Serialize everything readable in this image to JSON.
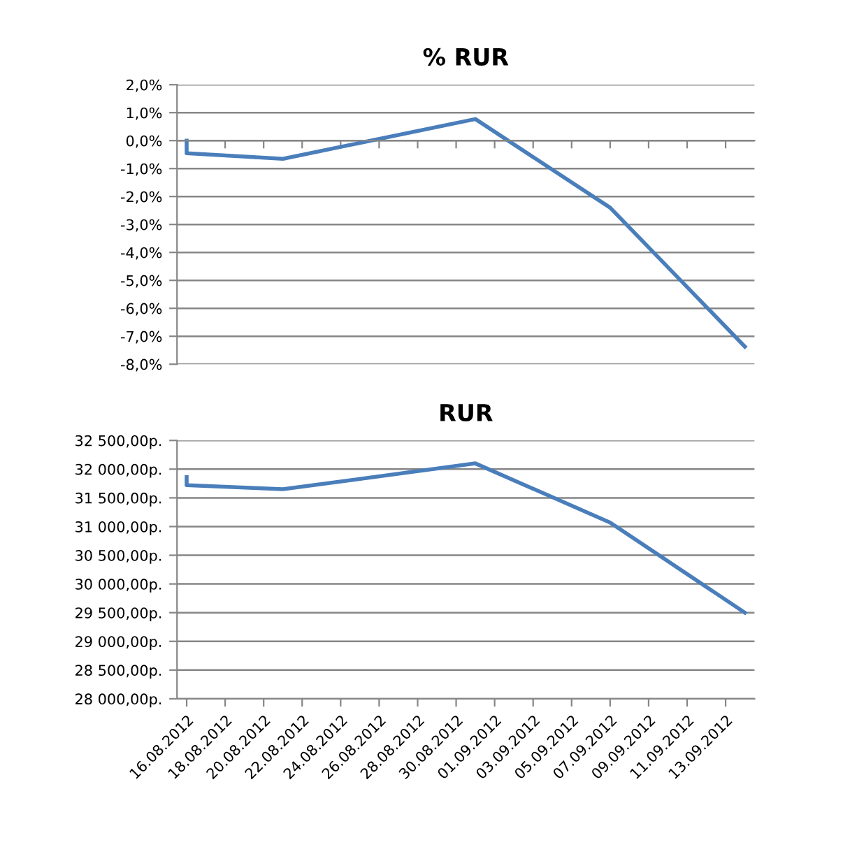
{
  "chart_data": [
    {
      "type": "line",
      "title": "% RUR",
      "tick_labels": "y",
      "grid": "y",
      "marker": "none",
      "line_style": "solid",
      "series": [
        {
          "color": "#4a7ebb",
          "x": [
            "2012-08-16",
            "2012-08-16",
            "2012-08-21",
            "2012-08-31",
            "2012-09-07",
            "2012-09-14"
          ],
          "values": [
            0.0,
            -0.45,
            -0.65,
            0.77,
            -2.4,
            -7.37
          ]
        }
      ],
      "xlim": [
        "2012-08-15T12:00",
        "2012-09-14T12:00"
      ],
      "xticks": [
        {
          "value": "2012-08-16",
          "label": null
        },
        {
          "value": "2012-08-18",
          "label": null
        },
        {
          "value": "2012-08-20",
          "label": null
        },
        {
          "value": "2012-08-22",
          "label": null
        },
        {
          "value": "2012-08-24",
          "label": null
        },
        {
          "value": "2012-08-26",
          "label": null
        },
        {
          "value": "2012-08-28",
          "label": null
        },
        {
          "value": "2012-08-30",
          "label": null
        },
        {
          "value": "2012-09-01",
          "label": null
        },
        {
          "value": "2012-09-03",
          "label": null
        },
        {
          "value": "2012-09-05",
          "label": null
        },
        {
          "value": "2012-09-07",
          "label": null
        },
        {
          "value": "2012-09-09",
          "label": null
        },
        {
          "value": "2012-09-11",
          "label": null
        },
        {
          "value": "2012-09-13",
          "label": null
        }
      ],
      "ylim": [
        -8,
        2
      ],
      "yticks": [
        {
          "value": -8,
          "label": "-8,0%"
        },
        {
          "value": -7,
          "label": "-7,0%"
        },
        {
          "value": -6,
          "label": "-6,0%"
        },
        {
          "value": -5,
          "label": "-5,0%"
        },
        {
          "value": -4,
          "label": "-4,0%"
        },
        {
          "value": -3,
          "label": "-3,0%"
        },
        {
          "value": -2,
          "label": "-2,0%"
        },
        {
          "value": -1,
          "label": "-1,0%"
        },
        {
          "value": 0,
          "label": "0,0%"
        },
        {
          "value": 1,
          "label": "1,0%"
        },
        {
          "value": 2,
          "label": "2,0%"
        }
      ]
    },
    {
      "type": "line",
      "title": "RUR",
      "grid": "y",
      "marker": "none",
      "line_style": "solid",
      "series": [
        {
          "color": "#4a7ebb",
          "x": [
            "2012-08-16",
            "2012-08-16",
            "2012-08-21",
            "2012-08-31",
            "2012-09-07",
            "2012-09-14"
          ],
          "values": [
            31860,
            31720,
            31650,
            32100,
            31070,
            29500
          ]
        }
      ],
      "xlim": [
        "2012-08-15T12:00",
        "2012-09-14T12:00"
      ],
      "xticks": [
        {
          "value": "2012-08-16",
          "label": "16.08.2012"
        },
        {
          "value": "2012-08-18",
          "label": "18.08.2012"
        },
        {
          "value": "2012-08-20",
          "label": "20.08.2012"
        },
        {
          "value": "2012-08-22",
          "label": "22.08.2012"
        },
        {
          "value": "2012-08-24",
          "label": "24.08.2012"
        },
        {
          "value": "2012-08-26",
          "label": "26.08.2012"
        },
        {
          "value": "2012-08-28",
          "label": "28.08.2012"
        },
        {
          "value": "2012-08-30",
          "label": "30.08.2012"
        },
        {
          "value": "2012-09-01",
          "label": "01.09.2012"
        },
        {
          "value": "2012-09-03",
          "label": "03.09.2012"
        },
        {
          "value": "2012-09-05",
          "label": "05.09.2012"
        },
        {
          "value": "2012-09-07",
          "label": "07.09.2012"
        },
        {
          "value": "2012-09-09",
          "label": "09.09.2012"
        },
        {
          "value": "2012-09-11",
          "label": "11.09.2012"
        },
        {
          "value": "2012-09-13",
          "label": "13.09.2012"
        }
      ],
      "ylim": [
        28000,
        32500
      ],
      "yticks": [
        {
          "value": 28000,
          "label": "28 000,00р."
        },
        {
          "value": 28500,
          "label": "28 500,00р."
        },
        {
          "value": 29000,
          "label": "29 000,00р."
        },
        {
          "value": 29500,
          "label": "29 500,00р."
        },
        {
          "value": 30000,
          "label": "30 000,00р."
        },
        {
          "value": 30500,
          "label": "30 500,00р."
        },
        {
          "value": 31000,
          "label": "31 000,00р."
        },
        {
          "value": 31500,
          "label": "31 500,00р."
        },
        {
          "value": 32000,
          "label": "32 000,00р."
        },
        {
          "value": 32500,
          "label": "32 500,00р."
        }
      ]
    }
  ]
}
